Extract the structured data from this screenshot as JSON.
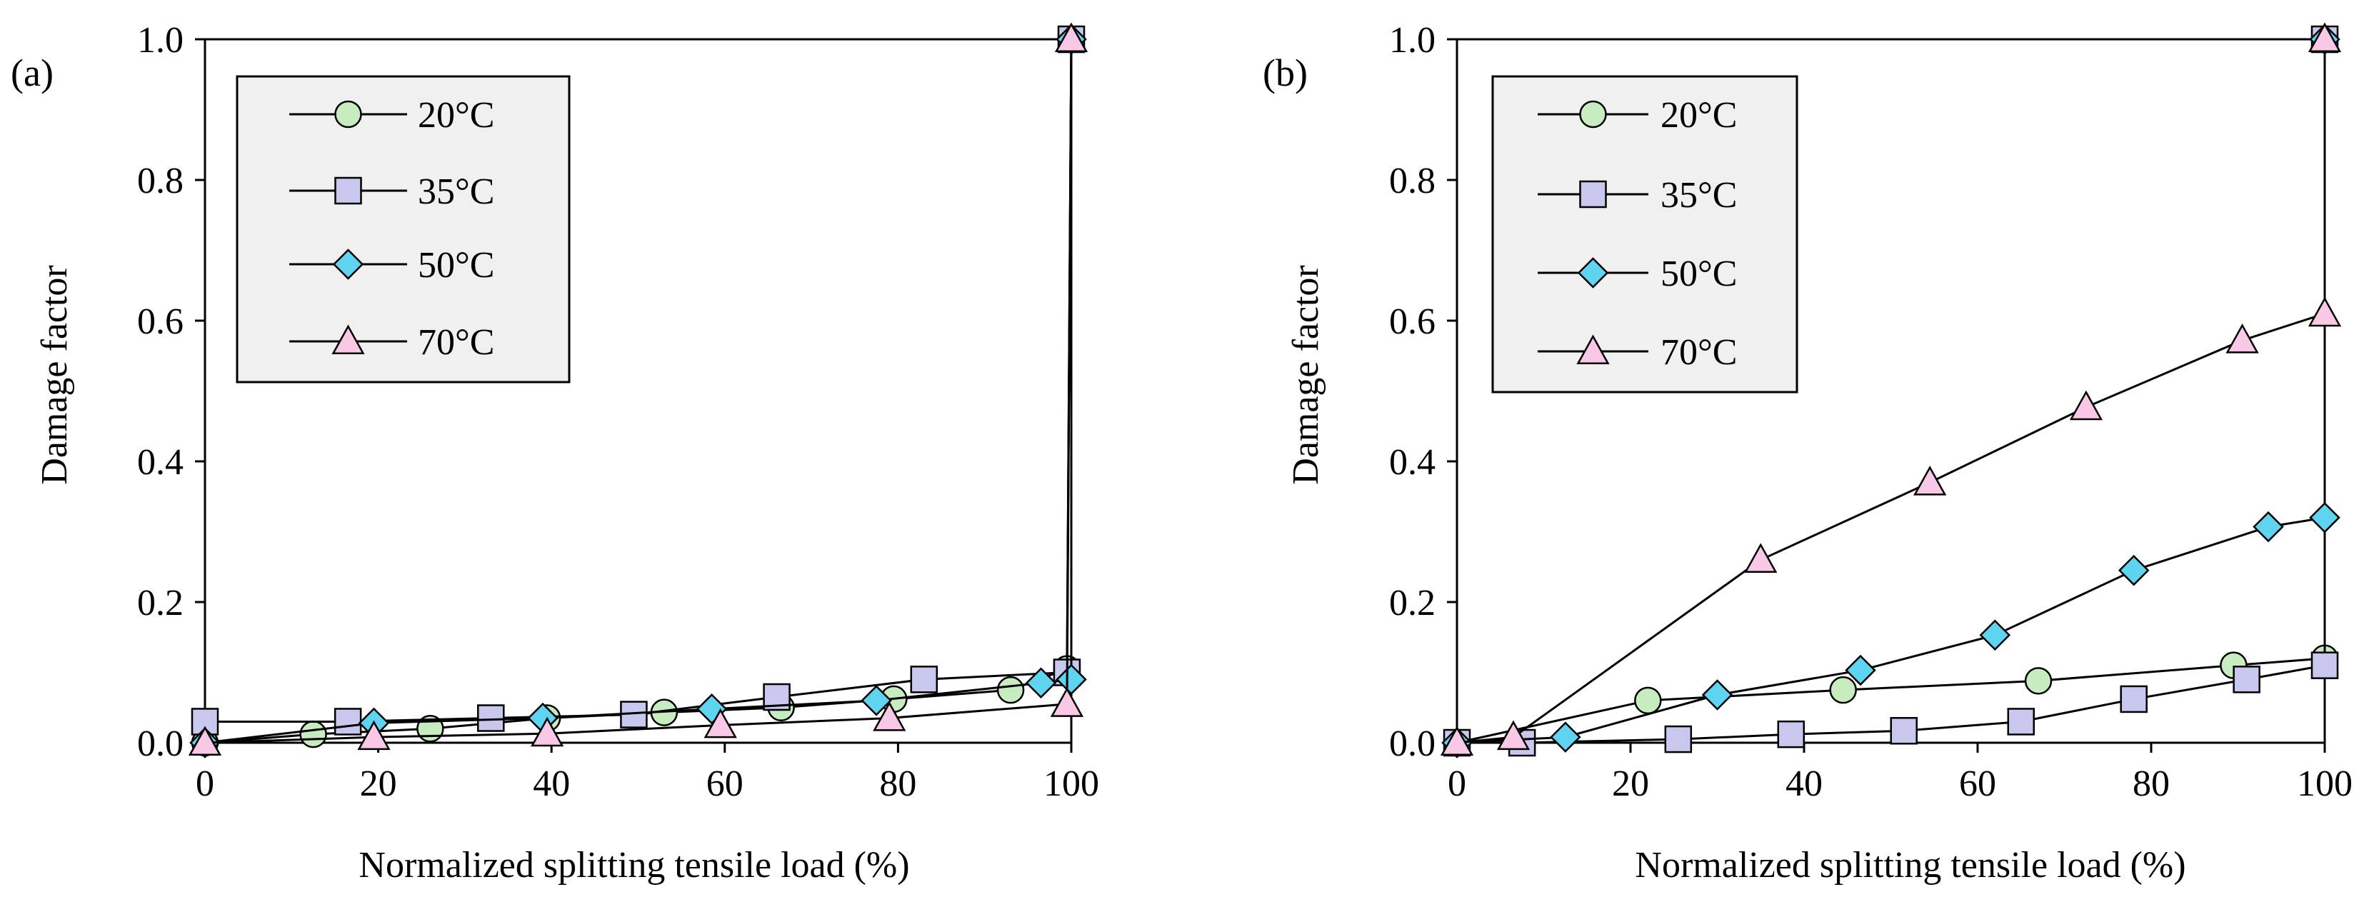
{
  "chart_data": [
    {
      "type": "line",
      "panel_label": "(a)",
      "xlabel": "Normalized splitting tensile load (%)",
      "ylabel": "Damage factor",
      "xlim": [
        0,
        100
      ],
      "ylim": [
        0,
        1.0
      ],
      "xticks": [
        0,
        20,
        40,
        60,
        80,
        100
      ],
      "xtick_labels": [
        "0",
        "20",
        "40",
        "60",
        "80",
        "100"
      ],
      "yticks": [
        0,
        0.2,
        0.4,
        0.6,
        0.8,
        1.0
      ],
      "ytick_labels": [
        "0.0",
        "0.2",
        "0.4",
        "0.6",
        "0.8",
        "1.0"
      ],
      "legend_position": "top-left",
      "series": [
        {
          "name": "20°C",
          "marker": "circle",
          "color": "#c6ecc0",
          "x": [
            0,
            12.5,
            26,
            39.5,
            53,
            66.5,
            79.5,
            93,
            99.5,
            100
          ],
          "y": [
            0,
            0.012,
            0.02,
            0.035,
            0.043,
            0.05,
            0.062,
            0.075,
            0.105,
            1.0
          ]
        },
        {
          "name": "35°C",
          "marker": "square",
          "color": "#c8c8ee",
          "x": [
            0,
            16.5,
            33,
            49.5,
            66,
            83,
            99.5,
            100
          ],
          "y": [
            0.03,
            0.03,
            0.035,
            0.04,
            0.065,
            0.09,
            0.1,
            1.0
          ]
        },
        {
          "name": "50°C",
          "marker": "diamond",
          "color": "#5fd4f0",
          "x": [
            0,
            19.5,
            39,
            58.5,
            77.5,
            96.5,
            100,
            100
          ],
          "y": [
            0,
            0.028,
            0.035,
            0.048,
            0.06,
            0.085,
            0.09,
            1.0
          ]
        },
        {
          "name": "70°C",
          "marker": "triangle",
          "color": "#f8c8e6",
          "x": [
            0,
            19.5,
            39.5,
            59.5,
            79,
            99.5,
            100
          ],
          "y": [
            0,
            0.008,
            0.013,
            0.025,
            0.035,
            0.055,
            1.0
          ]
        }
      ]
    },
    {
      "type": "line",
      "panel_label": "(b)",
      "xlabel": "Normalized splitting tensile load (%)",
      "ylabel": "Damage factor",
      "xlim": [
        0,
        100
      ],
      "ylim": [
        0,
        1.0
      ],
      "xticks": [
        0,
        20,
        40,
        60,
        80,
        100
      ],
      "xtick_labels": [
        "0",
        "20",
        "40",
        "60",
        "80",
        "100"
      ],
      "yticks": [
        0,
        0.2,
        0.4,
        0.6,
        0.8,
        1.0
      ],
      "ytick_labels": [
        "0.0",
        "0.2",
        "0.4",
        "0.6",
        "0.8",
        "1.0"
      ],
      "legend_position": "top-left",
      "series": [
        {
          "name": "20°C",
          "marker": "circle",
          "color": "#c6ecc0",
          "x": [
            0,
            22,
            44.5,
            67,
            89.5,
            100,
            100
          ],
          "y": [
            0,
            0.06,
            0.075,
            0.088,
            0.11,
            0.12,
            1.0
          ]
        },
        {
          "name": "35°C",
          "marker": "square",
          "color": "#c8c8ee",
          "x": [
            0,
            7.5,
            25.5,
            38.5,
            51.5,
            65,
            78,
            91,
            100,
            100
          ],
          "y": [
            0,
            0,
            0.005,
            0.012,
            0.017,
            0.03,
            0.062,
            0.09,
            0.11,
            1.0
          ]
        },
        {
          "name": "50°C",
          "marker": "diamond",
          "color": "#5fd4f0",
          "x": [
            0,
            12.5,
            30,
            46.5,
            62,
            78,
            93.5,
            100,
            100
          ],
          "y": [
            0,
            0.008,
            0.068,
            0.103,
            0.153,
            0.245,
            0.307,
            0.32,
            1.0
          ]
        },
        {
          "name": "70°C",
          "marker": "triangle",
          "color": "#f8c8e6",
          "x": [
            0,
            6.5,
            35,
            54.5,
            72.5,
            90.5,
            100,
            100
          ],
          "y": [
            0,
            0.008,
            0.26,
            0.37,
            0.477,
            0.572,
            0.61,
            1.0
          ]
        }
      ]
    }
  ]
}
